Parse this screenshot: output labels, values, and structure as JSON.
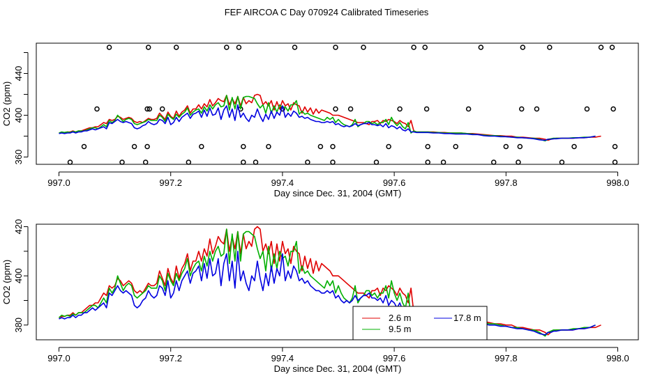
{
  "chart_data": [
    {
      "type": "scatter+line",
      "title": "FEF AIRCOA C  Day 070924  Calibrated Timeseries",
      "xlabel": "Day since Dec. 31, 2004 (GMT)",
      "ylabel": "CO2 (ppm)",
      "xlim": [
        997.0,
        998.0
      ],
      "ylim": [
        353,
        469
      ],
      "xticks": [
        "997.0",
        "997.2",
        "997.4",
        "997.6",
        "997.8",
        "998.0"
      ],
      "yticks": [
        "360",
        "400",
        "440"
      ],
      "yticks_minor": [
        380,
        420,
        460
      ],
      "series_colors": [
        "#e00000",
        "#00b000",
        "#0000e0"
      ],
      "ref_points": {
        "x": [
          997.02,
          997.045,
          997.068,
          997.09,
          997.113,
          997.135,
          997.155,
          997.158,
          997.158,
          997.16,
          997.162,
          997.185,
          997.21,
          997.232,
          997.255,
          997.3,
          997.322,
          997.325,
          997.33,
          997.33,
          997.352,
          997.375,
          997.4,
          997.422,
          997.445,
          997.468,
          997.49,
          997.49,
          997.495,
          997.495,
          997.522,
          997.545,
          997.568,
          997.59,
          997.61,
          997.635,
          997.655,
          997.658,
          997.66,
          997.66,
          997.688,
          997.71,
          997.733,
          997.755,
          997.778,
          997.8,
          997.822,
          997.825,
          997.828,
          997.83,
          997.855,
          997.878,
          997.9,
          997.922,
          997.945,
          997.97,
          997.99,
          997.992,
          997.995,
          997.995
        ],
        "y": [
          355,
          370,
          406,
          465,
          355,
          370,
          355,
          370,
          406,
          465,
          406,
          406,
          465,
          355,
          370,
          465,
          465,
          406,
          370,
          355,
          355,
          370,
          406,
          465,
          355,
          370,
          355,
          370,
          406,
          465,
          406,
          465,
          355,
          370,
          406,
          465,
          465,
          406,
          370,
          355,
          355,
          370,
          406,
          465,
          355,
          370,
          355,
          370,
          406,
          465,
          406,
          465,
          355,
          370,
          406,
          465,
          465,
          406,
          370,
          355
        ]
      }
    },
    {
      "type": "line",
      "xlabel": "Day since Dec. 31, 2004 (GMT)",
      "ylabel": "CO2 (ppm)",
      "xlim": [
        997.0,
        998.0
      ],
      "ylim": [
        374,
        421
      ],
      "xticks": [
        "997.0",
        "997.2",
        "997.4",
        "997.6",
        "997.8",
        "998.0"
      ],
      "yticks": [
        "380",
        "400",
        "420"
      ],
      "yticks_minor": [
        390,
        410
      ],
      "legend": {
        "position": "bottom-center",
        "entries": [
          {
            "label": "2.6 m",
            "color": "#e00000"
          },
          {
            "label": "9.5 m",
            "color": "#00b000"
          },
          {
            "label": "17.8 m",
            "color": "#0000e0"
          }
        ]
      }
    }
  ],
  "shared_series": {
    "x": [
      997.0,
      997.005,
      997.01,
      997.015,
      997.02,
      997.025,
      997.03,
      997.035,
      997.04,
      997.045,
      997.05,
      997.055,
      997.06,
      997.065,
      997.07,
      997.075,
      997.08,
      997.085,
      997.09,
      997.095,
      997.1,
      997.105,
      997.11,
      997.115,
      997.12,
      997.125,
      997.13,
      997.135,
      997.14,
      997.145,
      997.15,
      997.155,
      997.16,
      997.165,
      997.17,
      997.175,
      997.18,
      997.185,
      997.19,
      997.195,
      997.2,
      997.205,
      997.21,
      997.215,
      997.22,
      997.225,
      997.23,
      997.235,
      997.24,
      997.245,
      997.25,
      997.255,
      997.26,
      997.265,
      997.27,
      997.275,
      997.28,
      997.285,
      997.29,
      997.295,
      997.3,
      997.305,
      997.31,
      997.315,
      997.32,
      997.325,
      997.33,
      997.335,
      997.34,
      997.345,
      997.35,
      997.355,
      997.36,
      997.365,
      997.37,
      997.375,
      997.38,
      997.385,
      997.39,
      997.395,
      997.4,
      997.405,
      997.41,
      997.415,
      997.42,
      997.425,
      997.43,
      997.435,
      997.44,
      997.445,
      997.45,
      997.455,
      997.46,
      997.465,
      997.47,
      997.475,
      997.48,
      997.485,
      997.49,
      997.495,
      997.5,
      997.505,
      997.51,
      997.515,
      997.52,
      997.525,
      997.53,
      997.535,
      997.54,
      997.545,
      997.55,
      997.555,
      997.56,
      997.565,
      997.57,
      997.575,
      997.58,
      997.585,
      997.59,
      997.595,
      997.6,
      997.605,
      997.61,
      997.615,
      997.62,
      997.625,
      997.63,
      997.635,
      997.64,
      997.65,
      997.66,
      997.67,
      997.68,
      997.69,
      997.7,
      997.71,
      997.72,
      997.73,
      997.74,
      997.75,
      997.76,
      997.77,
      997.78,
      997.79,
      997.8,
      997.81,
      997.82,
      997.83,
      997.84,
      997.85,
      997.86,
      997.87,
      997.875,
      997.88,
      997.885,
      997.89,
      997.9,
      997.91,
      997.92,
      997.93,
      997.94,
      997.95,
      997.96,
      997.97,
      997.98,
      997.99,
      998.0
    ],
    "s2_6m": [
      383,
      383.5,
      383.5,
      384,
      384,
      385,
      384,
      385,
      385,
      386,
      387,
      388,
      388,
      389,
      389,
      391,
      393,
      392,
      396,
      395,
      396,
      399,
      398,
      396,
      397,
      398,
      397,
      394,
      393,
      394,
      393,
      395,
      397,
      396,
      396,
      397,
      402,
      399,
      396,
      403,
      399,
      397,
      404,
      399,
      403,
      405,
      409,
      402,
      406,
      406,
      410,
      406,
      411,
      408,
      415,
      409,
      412,
      416,
      414,
      413,
      419,
      410,
      416,
      411,
      418,
      409,
      417,
      411,
      414,
      412,
      419,
      420,
      419,
      410,
      413,
      409,
      414,
      405,
      413,
      406,
      414,
      409,
      411,
      405,
      412,
      410,
      409,
      402,
      408,
      403,
      407,
      401,
      406,
      402,
      405,
      404,
      403,
      402,
      400,
      400,
      400,
      399,
      398,
      397,
      396,
      395,
      394,
      393,
      393,
      393,
      392,
      391,
      394,
      394,
      395,
      392,
      395,
      394,
      396,
      395,
      394,
      392,
      395,
      393,
      392,
      389,
      395,
      385,
      384,
      384,
      384,
      384,
      383.5,
      383.5,
      383,
      383,
      383,
      382.5,
      382.5,
      382,
      381.5,
      381,
      380.5,
      380.5,
      380,
      380,
      379,
      379,
      378.5,
      378,
      378,
      377,
      376,
      377,
      377.5,
      378,
      378,
      378,
      378,
      378.5,
      378.5,
      379,
      379,
      380
    ],
    "s9_5m": [
      383,
      384,
      383.5,
      384,
      383.5,
      384.5,
      384,
      385,
      385,
      385,
      386,
      387,
      388,
      388,
      387,
      389,
      391,
      389,
      395,
      393,
      395,
      400,
      397,
      394,
      396,
      397,
      396,
      392,
      391,
      392,
      393,
      394,
      396,
      395,
      395,
      395,
      400,
      398,
      394,
      401,
      398,
      396,
      401,
      398,
      401,
      403,
      407,
      400,
      403,
      405,
      406,
      402,
      408,
      404,
      410,
      406,
      410,
      412,
      408,
      409,
      419,
      405,
      417,
      406,
      418,
      406,
      417,
      418,
      418,
      417,
      416,
      411,
      407,
      410,
      402,
      412,
      402,
      409,
      403,
      410,
      407,
      408,
      404,
      410,
      410,
      414,
      401,
      404,
      401,
      402,
      400,
      399,
      398,
      397,
      396,
      395,
      398,
      396,
      398,
      393,
      396,
      393,
      391,
      390,
      389,
      391,
      396,
      389,
      391,
      392,
      394,
      394,
      392,
      393,
      391,
      393,
      393,
      396,
      391,
      398,
      393,
      390,
      393,
      389,
      387,
      393,
      383,
      385,
      384,
      384,
      384,
      383.5,
      383.5,
      383,
      383,
      383,
      383,
      382.5,
      382,
      381.5,
      381,
      380.5,
      380.5,
      380,
      379.5,
      379,
      379,
      378.5,
      378,
      378,
      377,
      375.5,
      377,
      377.5,
      378,
      378,
      378,
      378,
      378.5,
      378.5,
      379,
      379,
      380
    ],
    "s17_8m": [
      382.5,
      383,
      382.5,
      383,
      383,
      384,
      383,
      384,
      384,
      385,
      385,
      386,
      387,
      386,
      387,
      388,
      389,
      387,
      393,
      392,
      394,
      396,
      394,
      393,
      394,
      393,
      392,
      388,
      387,
      388,
      390,
      391,
      394,
      392,
      391,
      392,
      396,
      395,
      392,
      398,
      391,
      393,
      398,
      394,
      398,
      400,
      402,
      397,
      401,
      402,
      404,
      398,
      405,
      399,
      407,
      400,
      401,
      407,
      396,
      405,
      409,
      398,
      406,
      395,
      410,
      398,
      402,
      397,
      394,
      400,
      398,
      406,
      399,
      394,
      401,
      396,
      404,
      397,
      403,
      400,
      409,
      398,
      402,
      399,
      404,
      402,
      398,
      399,
      397,
      398,
      396,
      395,
      394,
      394,
      393,
      393,
      394,
      393,
      394,
      391,
      392,
      390,
      389,
      390,
      389,
      390,
      392,
      390,
      391,
      392,
      392,
      393,
      391,
      391,
      390,
      391,
      389,
      392,
      388,
      390,
      389,
      387,
      389,
      386,
      385,
      387,
      384,
      384,
      383.5,
      383.5,
      383.5,
      383,
      383,
      382.5,
      382.5,
      382,
      382,
      382,
      381.5,
      381.5,
      380.5,
      380,
      380,
      379.5,
      379.5,
      379,
      378.5,
      378.5,
      378,
      377.5,
      376.5,
      376,
      377,
      377,
      377.5,
      377.5,
      378,
      378,
      378,
      378.5,
      378.5,
      379,
      380
    ]
  }
}
